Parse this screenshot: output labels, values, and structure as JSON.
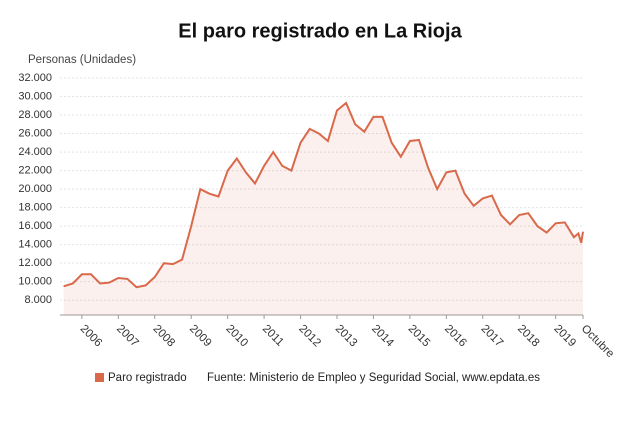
{
  "chart_data": {
    "type": "line",
    "title": "El paro registrado en La Rioja",
    "y_label": "Personas (Unidades)",
    "source": "Fuente: Ministerio de Empleo y Seguridad Social, www.epdata.es",
    "x": [
      2005.5,
      2005.75,
      2006,
      2006.25,
      2006.5,
      2006.75,
      2007,
      2007.25,
      2007.5,
      2007.75,
      2008,
      2008.25,
      2008.5,
      2008.75,
      2009,
      2009.25,
      2009.5,
      2009.75,
      2010,
      2010.25,
      2010.5,
      2010.75,
      2011,
      2011.25,
      2011.5,
      2011.75,
      2012,
      2012.25,
      2012.5,
      2012.75,
      2013,
      2013.25,
      2013.5,
      2013.75,
      2014,
      2014.25,
      2014.5,
      2014.75,
      2015,
      2015.25,
      2015.5,
      2015.75,
      2016,
      2016.25,
      2016.5,
      2016.75,
      2017,
      2017.25,
      2017.5,
      2017.75,
      2018,
      2018.25,
      2018.5,
      2018.75,
      2019,
      2019.25,
      2019.5,
      2019.625,
      2019.7,
      2019.75
    ],
    "series": [
      {
        "name": "Paro registrado",
        "color": "#d9694a",
        "values": [
          9500,
          9800,
          10800,
          10800,
          9800,
          9900,
          10400,
          10300,
          9400,
          9600,
          10500,
          12000,
          11900,
          12400,
          16000,
          20000,
          19500,
          19200,
          22000,
          23300,
          21800,
          20600,
          22500,
          24000,
          22500,
          22000,
          25000,
          26500,
          26000,
          25200,
          28500,
          29300,
          27000,
          26200,
          27800,
          27800,
          25000,
          23500,
          25200,
          25300,
          22300,
          20000,
          21800,
          22000,
          19500,
          18200,
          19000,
          19300,
          17200,
          16200,
          17200,
          17400,
          16000,
          15300,
          16300,
          16400,
          14800,
          15200,
          14200,
          15400
        ]
      }
    ],
    "xlim": [
      2005.4,
      2019.75
    ],
    "xticks": [
      2006,
      2007,
      2008,
      2009,
      2010,
      2011,
      2012,
      2013,
      2014,
      2015,
      2016,
      2017,
      2018,
      2019,
      {
        "value": 2019.75,
        "label": "Octubre"
      }
    ],
    "ylim": [
      6400,
      32000
    ],
    "yticks": [
      {
        "value": 8000,
        "label": "8.000"
      },
      {
        "value": 10000,
        "label": "10.000"
      },
      {
        "value": 12000,
        "label": "12.000"
      },
      {
        "value": 14000,
        "label": "14.000"
      },
      {
        "value": 16000,
        "label": "16.000"
      },
      {
        "value": 18000,
        "label": "18.000"
      },
      {
        "value": 20000,
        "label": "20.000"
      },
      {
        "value": 22000,
        "label": "22.000"
      },
      {
        "value": 24000,
        "label": "24.000"
      },
      {
        "value": 26000,
        "label": "26.000"
      },
      {
        "value": 28000,
        "label": "28.000"
      },
      {
        "value": 30000,
        "label": "30.000"
      },
      {
        "value": 32000,
        "label": "32.000"
      }
    ],
    "grid": true,
    "legend": "bottom"
  }
}
